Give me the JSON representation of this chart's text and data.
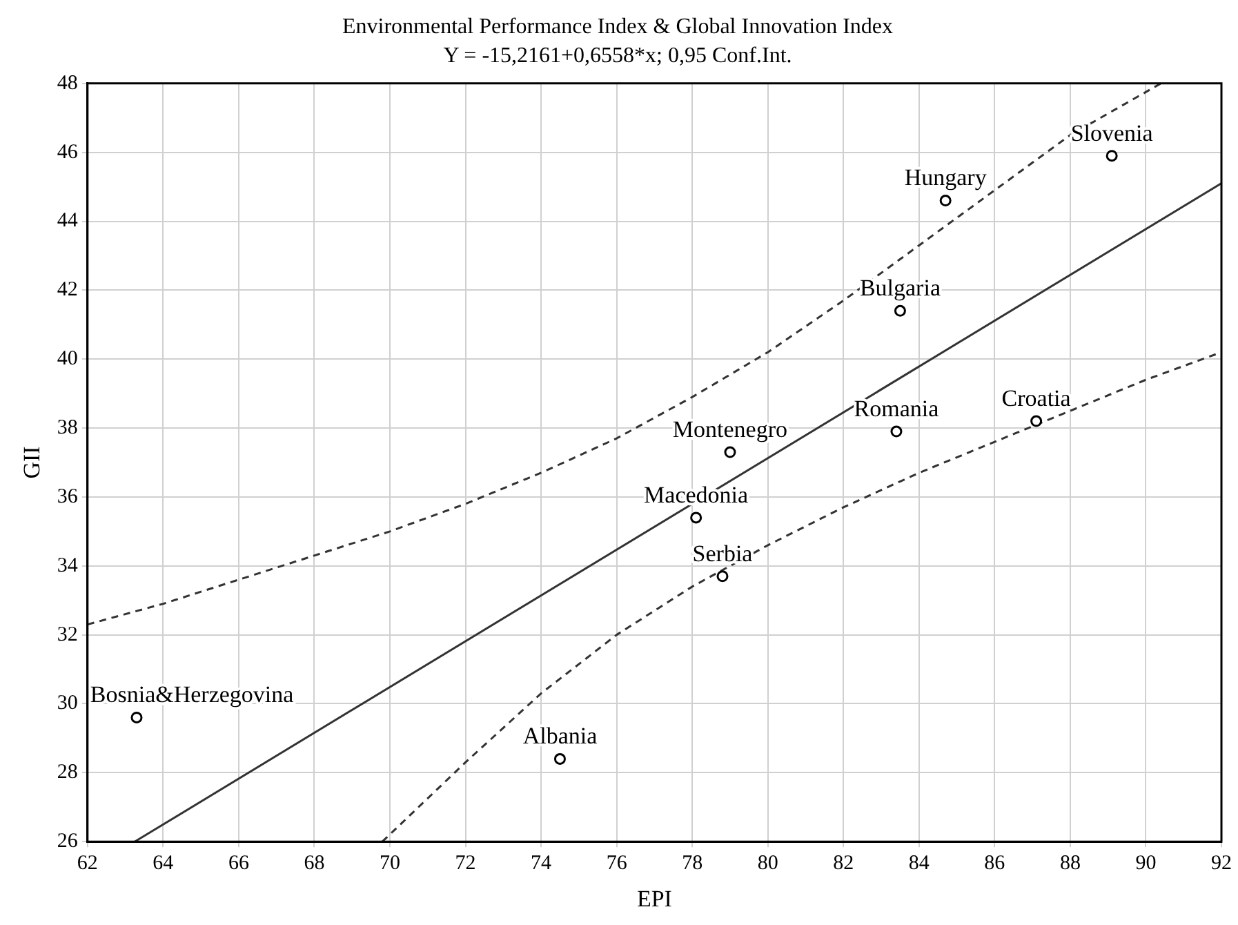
{
  "chart_data": {
    "type": "scatter",
    "title": "Environmental Performance Index & Global Innovation Index",
    "subtitle": "Y = -15,2161+0,6558*x; 0,95 Conf.Int.",
    "xlabel": "EPI",
    "ylabel": "GII",
    "xlim": [
      62,
      92
    ],
    "xticks": [
      62,
      64,
      66,
      68,
      70,
      72,
      74,
      76,
      78,
      80,
      82,
      84,
      86,
      88,
      90,
      92
    ],
    "ylim": [
      26,
      48
    ],
    "yticks": [
      26,
      28,
      30,
      32,
      34,
      36,
      38,
      40,
      42,
      44,
      46,
      48
    ],
    "grid": true,
    "legend": false,
    "marker": "circle",
    "series": [
      {
        "type": "scatter",
        "color": "#000000",
        "x": [
          63.3,
          74.5,
          78.1,
          78.8,
          79.0,
          83.4,
          87.1,
          83.5,
          84.7,
          89.1
        ],
        "values": [
          29.6,
          28.4,
          35.4,
          33.7,
          37.3,
          37.9,
          38.2,
          41.4,
          44.6,
          45.9
        ]
      },
      {
        "type": "line",
        "color": "#333333",
        "marker": "none",
        "line_style": "solid",
        "x": [
          63.25,
          92
        ],
        "values": [
          26.0,
          45.1
        ]
      },
      {
        "type": "line",
        "color": "#333333",
        "marker": "none",
        "line_style": "dashed",
        "x": [
          62,
          64,
          66,
          68,
          70,
          72,
          74,
          76,
          78,
          80,
          82,
          84,
          86,
          88,
          90.4
        ],
        "values": [
          32.3,
          32.9,
          33.6,
          34.3,
          35.0,
          35.8,
          36.7,
          37.7,
          38.9,
          40.2,
          41.7,
          43.3,
          44.9,
          46.5,
          48.0
        ]
      },
      {
        "type": "line",
        "color": "#333333",
        "marker": "none",
        "line_style": "dashed",
        "x": [
          69.8,
          72,
          74,
          76,
          78,
          80,
          82,
          84,
          86,
          88,
          90,
          92
        ],
        "values": [
          26.0,
          28.3,
          30.3,
          32.0,
          33.4,
          34.6,
          35.7,
          36.7,
          37.6,
          38.5,
          39.4,
          40.2
        ]
      }
    ],
    "annotations": [
      {
        "text": "Bosnia&Herzegovina",
        "x": 63.3,
        "y": 29.6
      },
      {
        "text": "Albania",
        "x": 74.5,
        "y": 28.4
      },
      {
        "text": "Macedonia",
        "x": 78.1,
        "y": 35.4
      },
      {
        "text": "Serbia",
        "x": 78.8,
        "y": 33.7
      },
      {
        "text": "Montenegro",
        "x": 79.0,
        "y": 37.3
      },
      {
        "text": "Romania",
        "x": 83.4,
        "y": 37.9
      },
      {
        "text": "Croatia",
        "x": 87.1,
        "y": 38.2
      },
      {
        "text": "Bulgaria",
        "x": 83.5,
        "y": 41.4
      },
      {
        "text": "Hungary",
        "x": 84.7,
        "y": 44.6
      },
      {
        "text": "Slovenia",
        "x": 89.1,
        "y": 45.9
      }
    ]
  }
}
